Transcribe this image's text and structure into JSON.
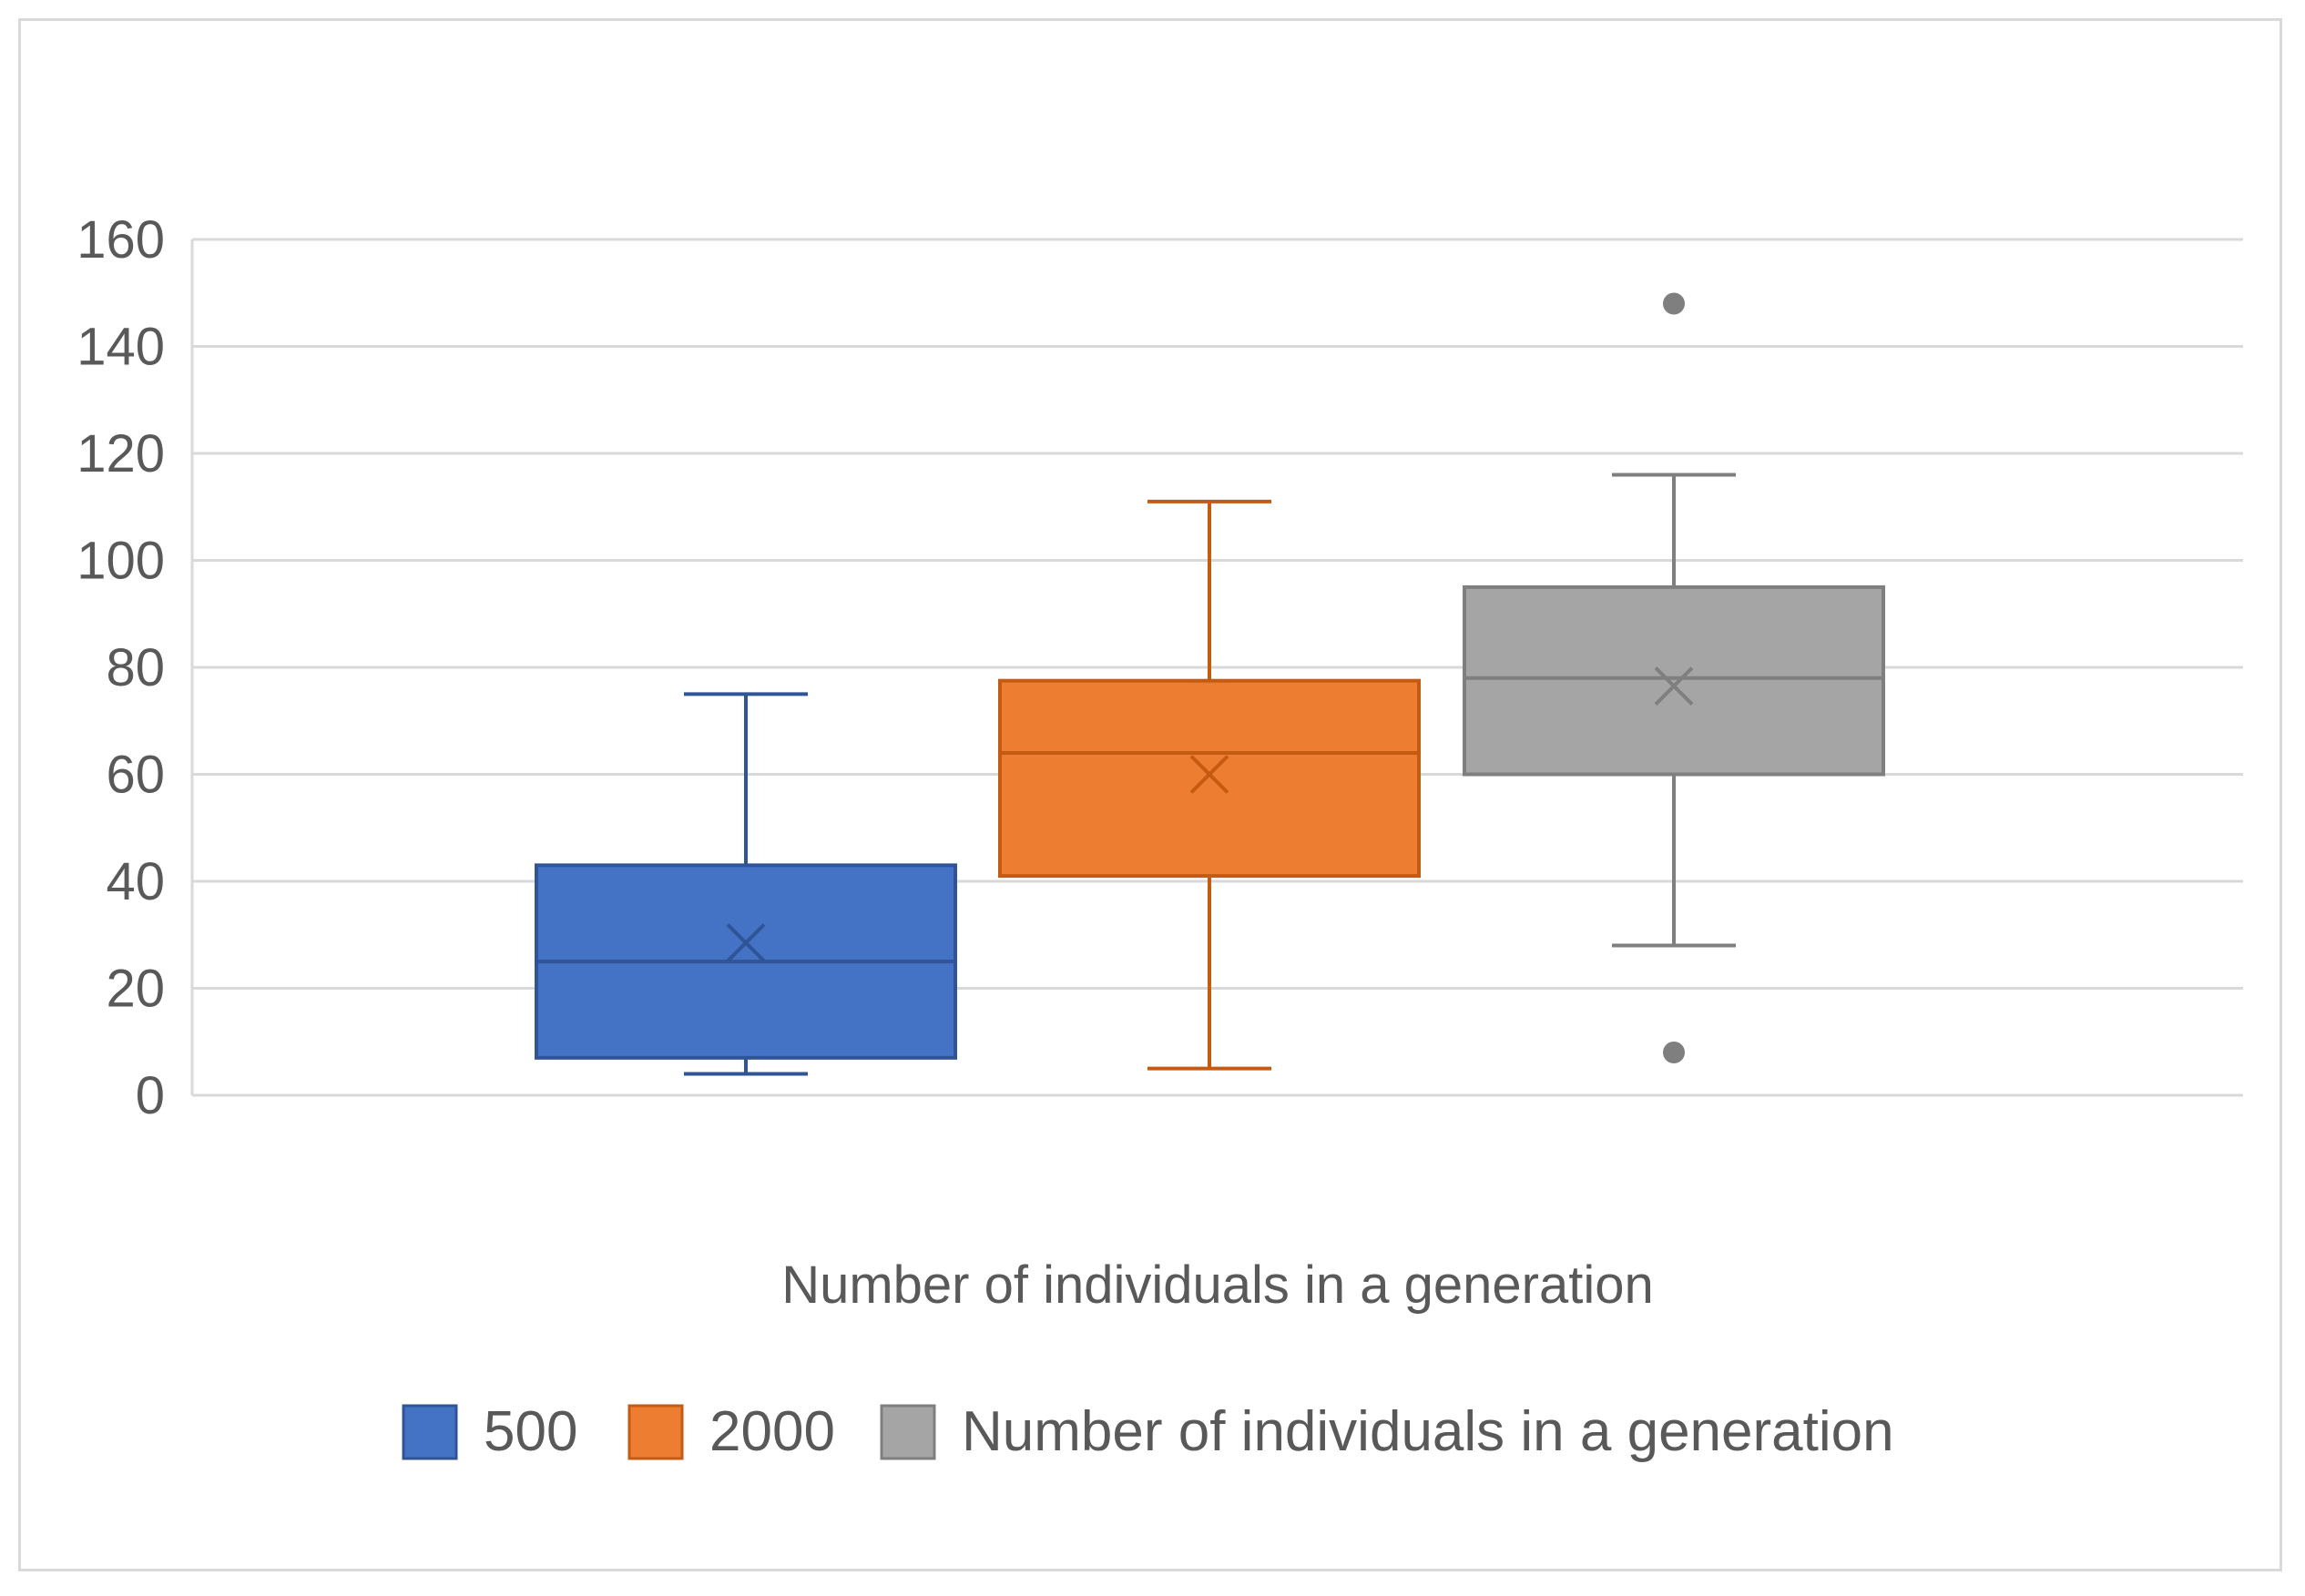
{
  "chart_data": {
    "type": "boxplot",
    "title": "",
    "xlabel": "Number of individuals in a generation",
    "ylabel": "",
    "ylim": [
      0,
      160
    ],
    "y_ticks": [
      0,
      20,
      40,
      60,
      80,
      100,
      120,
      140,
      160
    ],
    "grid": true,
    "legend_position": "bottom",
    "series": [
      {
        "name": "500",
        "color": "#4472C4",
        "min": 4,
        "q1": 7,
        "median": 25,
        "q3": 43,
        "max": 75,
        "mean": 28.5,
        "outliers": []
      },
      {
        "name": "2000",
        "color": "#ED7D31",
        "min": 5,
        "q1": 41,
        "median": 64,
        "q3": 77.5,
        "max": 111,
        "mean": 60,
        "outliers": []
      },
      {
        "name": "Number of individuals in a generation",
        "color": "#A5A5A5",
        "min": 28,
        "q1": 60,
        "median": 78,
        "q3": 95,
        "max": 116,
        "mean": 76.5,
        "outliers": [
          148,
          8
        ]
      }
    ]
  }
}
